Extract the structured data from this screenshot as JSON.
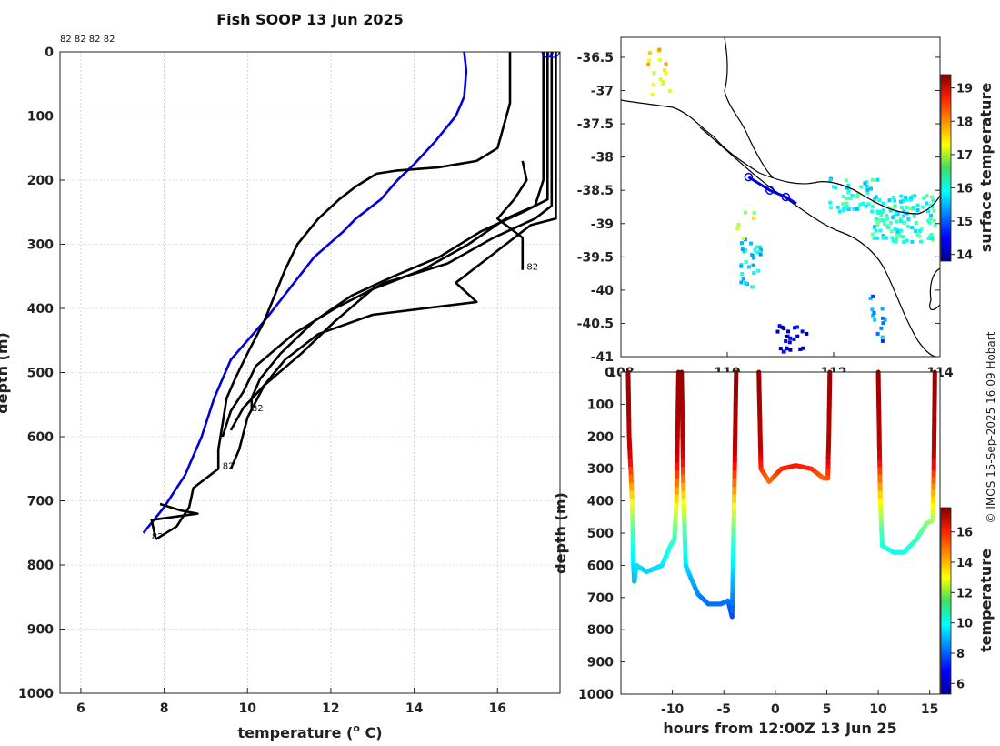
{
  "credit": "© IMOS 15-Sep-2025 16:09 Hobart",
  "colors": {
    "cast": "#000000",
    "selected": "#0000dd",
    "grid": "#cccccc"
  },
  "chart_data": [
    {
      "id": "profile",
      "type": "line",
      "title": "Fish SOOP 13 Jun 2025",
      "xlabel": "temperature (",
      "xlabel_sup": "o",
      "xlabel_end": " C)",
      "ylabel": "depth (m)",
      "xlim": [
        5.5,
        17.5
      ],
      "ylim": [
        1000,
        0
      ],
      "xticks": [
        "6",
        "8",
        "10",
        "12",
        "14",
        "16"
      ],
      "yticks": [
        "0",
        "100",
        "200",
        "300",
        "400",
        "500",
        "600",
        "700",
        "800",
        "900",
        "1000"
      ],
      "top_labels": [
        "82",
        "82",
        "82",
        "82"
      ],
      "cast_labels": [
        {
          "text": "82",
          "t": 16.7,
          "d": 340
        },
        {
          "text": "82",
          "t": 10.1,
          "d": 560
        },
        {
          "text": "82",
          "t": 9.4,
          "d": 650
        },
        {
          "text": "82",
          "t": 7.7,
          "d": 760
        }
      ],
      "series": [
        {
          "name": "selected cast",
          "color": "#0000dd",
          "points": [
            [
              15.2,
              0
            ],
            [
              15.25,
              30
            ],
            [
              15.2,
              70
            ],
            [
              15.0,
              100
            ],
            [
              14.5,
              140
            ],
            [
              14.0,
              175
            ],
            [
              13.6,
              200
            ],
            [
              13.2,
              230
            ],
            [
              12.6,
              260
            ],
            [
              12.3,
              280
            ],
            [
              11.6,
              320
            ],
            [
              10.4,
              420
            ],
            [
              9.6,
              480
            ],
            [
              9.2,
              540
            ],
            [
              8.9,
              600
            ],
            [
              8.5,
              660
            ],
            [
              8.0,
              710
            ],
            [
              7.5,
              750
            ]
          ]
        },
        {
          "name": "cast 2",
          "color": "#000000",
          "points": [
            [
              16.3,
              0
            ],
            [
              16.3,
              80
            ],
            [
              16.0,
              150
            ],
            [
              15.5,
              170
            ],
            [
              14.6,
              180
            ],
            [
              13.6,
              185
            ],
            [
              13.1,
              190
            ],
            [
              12.6,
              210
            ],
            [
              12.2,
              230
            ],
            [
              11.7,
              260
            ],
            [
              11.2,
              300
            ],
            [
              10.9,
              340
            ],
            [
              10.4,
              420
            ],
            [
              10.0,
              470
            ],
            [
              9.7,
              510
            ],
            [
              9.5,
              540
            ],
            [
              9.4,
              580
            ],
            [
              9.3,
              620
            ],
            [
              9.3,
              650
            ],
            [
              8.7,
              680
            ],
            [
              8.6,
              710
            ],
            [
              8.3,
              740
            ],
            [
              7.8,
              760
            ]
          ]
        },
        {
          "name": "cast 3",
          "color": "#000000",
          "points": [
            [
              17.1,
              0
            ],
            [
              17.1,
              200
            ],
            [
              16.9,
              240
            ],
            [
              16.2,
              260
            ],
            [
              15.3,
              300
            ],
            [
              14.2,
              340
            ],
            [
              13.0,
              370
            ],
            [
              12.1,
              420
            ],
            [
              11.3,
              470
            ],
            [
              10.4,
              520
            ],
            [
              10.0,
              570
            ],
            [
              9.8,
              620
            ],
            [
              9.6,
              650
            ]
          ]
        },
        {
          "name": "cast 4",
          "color": "#000000",
          "points": [
            [
              17.2,
              0
            ],
            [
              17.2,
              230
            ],
            [
              16.6,
              250
            ],
            [
              15.6,
              280
            ],
            [
              14.6,
              320
            ],
            [
              13.5,
              350
            ],
            [
              12.5,
              380
            ],
            [
              11.6,
              420
            ],
            [
              10.8,
              470
            ],
            [
              10.3,
              510
            ],
            [
              10.1,
              540
            ],
            [
              10.1,
              560
            ]
          ]
        },
        {
          "name": "cast 5",
          "color": "#000000",
          "points": [
            [
              17.3,
              0
            ],
            [
              17.3,
              240
            ],
            [
              16.9,
              260
            ],
            [
              15.9,
              290
            ],
            [
              14.8,
              330
            ],
            [
              13.3,
              360
            ],
            [
              12.1,
              400
            ],
            [
              11.1,
              440
            ],
            [
              10.2,
              490
            ],
            [
              9.9,
              530
            ],
            [
              9.6,
              560
            ],
            [
              9.4,
              600
            ]
          ]
        },
        {
          "name": "cast 6",
          "color": "#000000",
          "points": [
            [
              17.4,
              0
            ],
            [
              17.4,
              260
            ],
            [
              16.8,
              270
            ],
            [
              16.2,
              300
            ],
            [
              15.0,
              360
            ],
            [
              15.5,
              390
            ],
            [
              13.0,
              410
            ],
            [
              11.7,
              440
            ],
            [
              10.9,
              480
            ],
            [
              10.4,
              520
            ],
            [
              9.9,
              555
            ],
            [
              9.6,
              590
            ]
          ]
        },
        {
          "name": "cast 7",
          "color": "#000000",
          "points": [
            [
              16.6,
              170
            ],
            [
              16.7,
              200
            ],
            [
              16.4,
              230
            ],
            [
              16.0,
              260
            ],
            [
              16.6,
              290
            ],
            [
              16.6,
              340
            ]
          ]
        },
        {
          "name": "cast 8",
          "color": "#000000",
          "points": [
            [
              7.9,
              705
            ],
            [
              8.4,
              715
            ],
            [
              8.8,
              720
            ],
            [
              7.7,
              730
            ],
            [
              7.8,
              760
            ]
          ]
        }
      ]
    },
    {
      "id": "map",
      "type": "heatmap",
      "title": "",
      "ylim": [
        -41,
        -36.2
      ],
      "xlim": [
        108,
        114
      ],
      "yticks": [
        "-36.5",
        "-37",
        "-37.5",
        "-38",
        "-38.5",
        "-39",
        "-39.5",
        "-40",
        "-40.5",
        "-41"
      ],
      "xticks": [
        "108",
        "110",
        "112",
        "114"
      ],
      "colorbar_label": "surface temperature",
      "colorbar_ticks": [
        "14",
        "15",
        "16",
        "17",
        "18",
        "19"
      ],
      "colorbar_range": [
        13.8,
        19.4
      ],
      "track_points": [
        [
          -38.3,
          110.4
        ],
        [
          -38.5,
          110.8
        ],
        [
          -38.6,
          111.1
        ],
        [
          -38.7,
          111.3
        ]
      ],
      "pixel_clusters": [
        {
          "lat": -38.9,
          "lon": 113.3,
          "temp": 16.1,
          "n": 120,
          "spread": [
            0.35,
            0.6
          ]
        },
        {
          "lat": -38.55,
          "lon": 112.4,
          "temp": 16.0,
          "n": 50,
          "spread": [
            0.25,
            0.5
          ]
        },
        {
          "lat": -39.6,
          "lon": 110.4,
          "temp": 15.8,
          "n": 30,
          "spread": [
            0.4,
            0.2
          ]
        },
        {
          "lat": -40.7,
          "lon": 111.2,
          "temp": 14.2,
          "n": 25,
          "spread": [
            0.2,
            0.3
          ]
        },
        {
          "lat": -40.4,
          "lon": 112.8,
          "temp": 15.2,
          "n": 14,
          "spread": [
            0.35,
            0.15
          ]
        },
        {
          "lat": -36.7,
          "lon": 108.7,
          "temp": 17.4,
          "n": 16,
          "spread": [
            0.35,
            0.25
          ]
        },
        {
          "lat": -38.9,
          "lon": 110.3,
          "temp": 17.0,
          "n": 6,
          "spread": [
            0.3,
            0.2
          ]
        }
      ]
    },
    {
      "id": "section",
      "type": "scatter",
      "xlabel": "hours from 12:00Z 13 Jun 25",
      "ylabel": "depth (m)",
      "xlim": [
        -15,
        16
      ],
      "ylim": [
        1000,
        0
      ],
      "xticks": [
        "-10",
        "-5",
        "0",
        "5",
        "10",
        "15"
      ],
      "yticks": [
        "0",
        "100",
        "200",
        "300",
        "400",
        "500",
        "600",
        "700",
        "800",
        "900",
        "1000"
      ],
      "colorbar_label": "temperature",
      "colorbar_ticks": [
        "6",
        "8",
        "10",
        "12",
        "14",
        "16"
      ],
      "colorbar_range": [
        5.3,
        17.6
      ],
      "profiles": [
        {
          "down": [
            [
              -14.3,
              0
            ],
            [
              -14.2,
              200
            ],
            [
              -13.9,
              400
            ],
            [
              -13.8,
              590
            ],
            [
              -13.7,
              650
            ]
          ],
          "up": [
            [
              -13.7,
              650
            ],
            [
              -13.5,
              600
            ],
            [
              -12.5,
              620
            ],
            [
              -11.0,
              600
            ],
            [
              -10.2,
              540
            ],
            [
              -9.8,
              520
            ],
            [
              -9.6,
              400
            ],
            [
              -9.5,
              200
            ],
            [
              -9.4,
              0
            ]
          ]
        },
        {
          "down": [
            [
              -9.1,
              0
            ],
            [
              -9.0,
              200
            ],
            [
              -8.9,
              400
            ],
            [
              -8.7,
              600
            ],
            [
              -8.2,
              640
            ],
            [
              -7.5,
              690
            ],
            [
              -6.5,
              720
            ],
            [
              -5.3,
              720
            ],
            [
              -4.6,
              710
            ],
            [
              -4.2,
              760
            ]
          ],
          "up": [
            [
              -4.2,
              760
            ],
            [
              -4.1,
              600
            ],
            [
              -4.0,
              400
            ],
            [
              -3.9,
              200
            ],
            [
              -3.8,
              0
            ]
          ]
        },
        {
          "down": [
            [
              -1.6,
              0
            ],
            [
              -1.5,
              150
            ],
            [
              -1.4,
              300
            ],
            [
              -0.6,
              340
            ],
            [
              0.6,
              300
            ],
            [
              2.0,
              290
            ],
            [
              3.5,
              300
            ],
            [
              4.7,
              330
            ],
            [
              5.1,
              330
            ]
          ],
          "up": [
            [
              5.1,
              330
            ],
            [
              5.2,
              200
            ],
            [
              5.3,
              0
            ]
          ]
        },
        {
          "down": [
            [
              10.0,
              0
            ],
            [
              10.1,
              200
            ],
            [
              10.2,
              400
            ],
            [
              10.4,
              540
            ],
            [
              11.5,
              560
            ],
            [
              12.5,
              560
            ],
            [
              13.7,
              520
            ],
            [
              14.7,
              470
            ],
            [
              15.3,
              460
            ]
          ],
          "up": [
            [
              15.3,
              460
            ],
            [
              15.4,
              300
            ],
            [
              15.5,
              0
            ]
          ]
        }
      ]
    }
  ]
}
